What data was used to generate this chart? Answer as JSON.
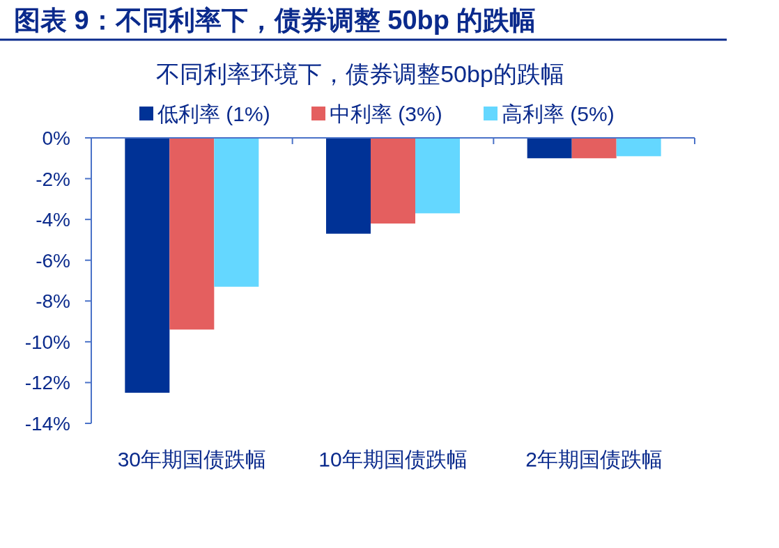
{
  "chart_data": {
    "type": "bar",
    "title": "图表 9：不同利率下，债券调整 50bp 的跌幅",
    "subtitle": "不同利率环境下，债券调整50bp的跌幅",
    "categories": [
      "30年期国债跌幅",
      "10年期国债跌幅",
      "2年期国债跌幅"
    ],
    "series": [
      {
        "name": "低利率 (1%)",
        "color": "#003296",
        "values": [
          -12.5,
          -4.7,
          -1.0
        ]
      },
      {
        "name": "中利率 (3%)",
        "color": "#e45f5f",
        "values": [
          -9.4,
          -4.2,
          -1.0
        ]
      },
      {
        "name": "高利率 (5%)",
        "color": "#64d7ff",
        "values": [
          -7.3,
          -3.7,
          -0.9
        ]
      }
    ],
    "ylim": [
      -14,
      0
    ],
    "yticks": [
      {
        "value": 0,
        "label": "0%"
      },
      {
        "value": -2,
        "label": "-2%"
      },
      {
        "value": -4,
        "label": "-4%"
      },
      {
        "value": -6,
        "label": "-6%"
      },
      {
        "value": -8,
        "label": "-8%"
      },
      {
        "value": -10,
        "label": "-10%"
      },
      {
        "value": -12,
        "label": "-12%"
      },
      {
        "value": -14,
        "label": "-14%"
      }
    ],
    "legend": "top"
  }
}
